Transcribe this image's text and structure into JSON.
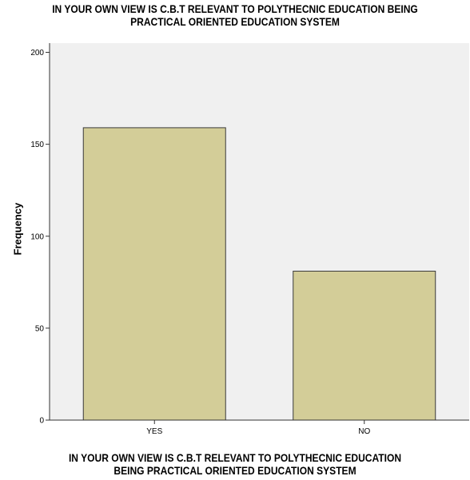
{
  "chart_data": {
    "type": "bar",
    "title_lines": [
      "IN YOUR OWN VIEW IS C.B.T RELEVANT TO POLYTHECNIC EDUCATION BEING",
      "PRACTICAL ORIENTED EDUCATION SYSTEM"
    ],
    "xlabel_lines": [
      "IN YOUR OWN VIEW IS C.B.T RELEVANT TO POLYTHECNIC EDUCATION",
      "BEING PRACTICAL ORIENTED EDUCATION SYSTEM"
    ],
    "ylabel": "Frequency",
    "categories": [
      "YES",
      "NO"
    ],
    "values": [
      159,
      81
    ],
    "ylim": [
      0,
      205
    ],
    "yticks": [
      0,
      50,
      100,
      150,
      200
    ],
    "grid": false,
    "colors": {
      "bar_fill": "#d3cd98",
      "bar_stroke": "#3a3a3a",
      "plot_background": "#f0f0f0",
      "axis": "#333333"
    }
  }
}
